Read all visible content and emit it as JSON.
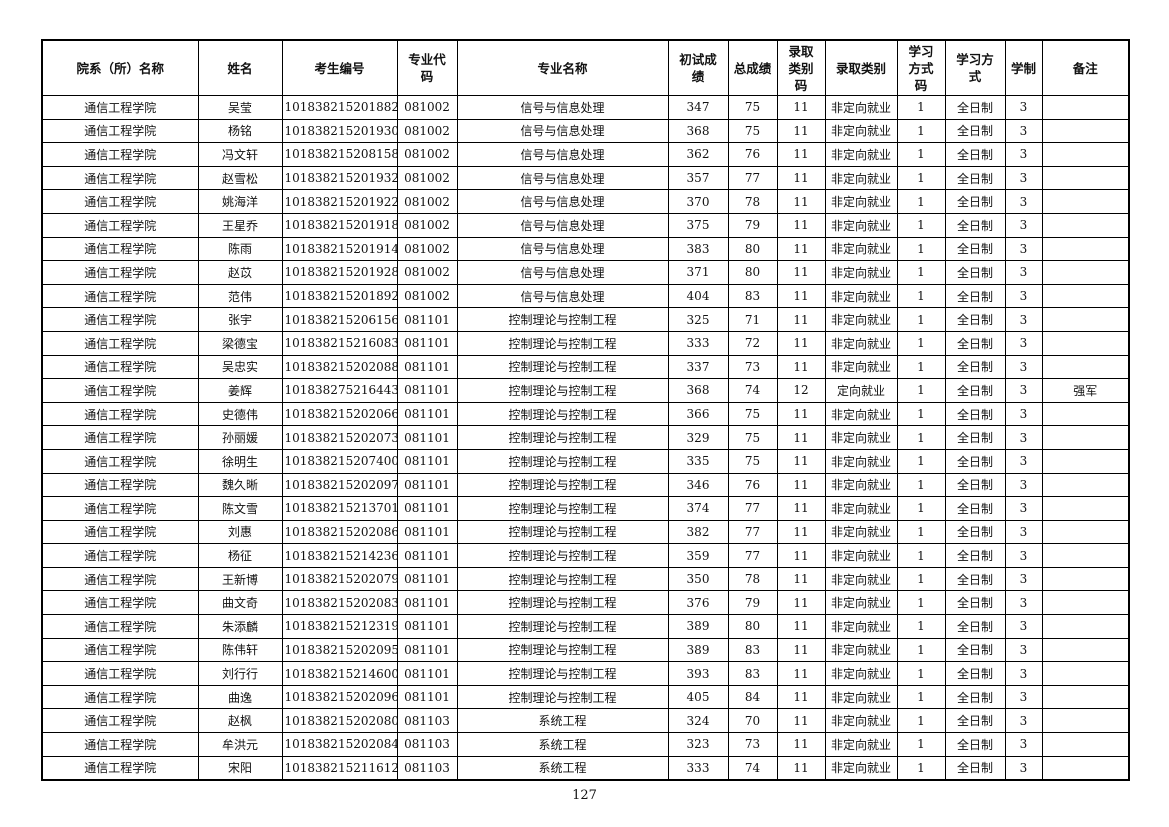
{
  "table": {
    "header": [
      "院系（所）名称",
      "姓名",
      "考生编号",
      "专业代码",
      "专业名称",
      "初试成绩",
      "总成绩",
      "录取类别码",
      "录取类别",
      "学习方式码",
      "学习方式",
      "学制",
      "备注"
    ],
    "rows": [
      [
        "通信工程学院",
        "吴莹",
        "101838215201882",
        "081002",
        "信号与信息处理",
        347,
        75,
        11,
        "非定向就业",
        1,
        "全日制",
        3
      ],
      [
        "通信工程学院",
        "杨铭",
        "101838215201930",
        "081002",
        "信号与信息处理",
        368,
        75,
        11,
        "非定向就业",
        1,
        "全日制",
        3
      ],
      [
        "通信工程学院",
        "冯文轩",
        "101838215208158",
        "081002",
        "信号与信息处理",
        362,
        76,
        11,
        "非定向就业",
        1,
        "全日制",
        3
      ],
      [
        "通信工程学院",
        "赵雪松",
        "101838215201932",
        "081002",
        "信号与信息处理",
        357,
        77,
        11,
        "非定向就业",
        1,
        "全日制",
        3
      ],
      [
        "通信工程学院",
        "姚海洋",
        "101838215201922",
        "081002",
        "信号与信息处理",
        370,
        78,
        11,
        "非定向就业",
        1,
        "全日制",
        3
      ],
      [
        "通信工程学院",
        "王星乔",
        "101838215201918",
        "081002",
        "信号与信息处理",
        375,
        79,
        11,
        "非定向就业",
        1,
        "全日制",
        3
      ],
      [
        "通信工程学院",
        "陈雨",
        "101838215201914",
        "081002",
        "信号与信息处理",
        383,
        80,
        11,
        "非定向就业",
        1,
        "全日制",
        3
      ],
      [
        "通信工程学院",
        "赵苡",
        "101838215201928",
        "081002",
        "信号与信息处理",
        371,
        80,
        11,
        "非定向就业",
        1,
        "全日制",
        3
      ],
      [
        "通信工程学院",
        "范伟",
        "101838215201892",
        "081002",
        "信号与信息处理",
        404,
        83,
        11,
        "非定向就业",
        1,
        "全日制",
        3
      ],
      [
        "通信工程学院",
        "张宇",
        "101838215206156",
        "081101",
        "控制理论与控制工程",
        325,
        71,
        11,
        "非定向就业",
        1,
        "全日制",
        3
      ],
      [
        "通信工程学院",
        "梁德宝",
        "101838215216083",
        "081101",
        "控制理论与控制工程",
        333,
        72,
        11,
        "非定向就业",
        1,
        "全日制",
        3
      ],
      [
        "通信工程学院",
        "吴忠实",
        "101838215202088",
        "081101",
        "控制理论与控制工程",
        337,
        73,
        11,
        "非定向就业",
        1,
        "全日制",
        3
      ],
      [
        "通信工程学院",
        "姜辉",
        "101838275216443",
        "081101",
        "控制理论与控制工程",
        368,
        74,
        12,
        "定向就业",
        1,
        "全日制",
        3,
        "强军"
      ],
      [
        "通信工程学院",
        "史德伟",
        "101838215202066",
        "081101",
        "控制理论与控制工程",
        366,
        75,
        11,
        "非定向就业",
        1,
        "全日制",
        3
      ],
      [
        "通信工程学院",
        "孙丽媛",
        "101838215202073",
        "081101",
        "控制理论与控制工程",
        329,
        75,
        11,
        "非定向就业",
        1,
        "全日制",
        3
      ],
      [
        "通信工程学院",
        "徐明生",
        "101838215207400",
        "081101",
        "控制理论与控制工程",
        335,
        75,
        11,
        "非定向就业",
        1,
        "全日制",
        3
      ],
      [
        "通信工程学院",
        "魏久晰",
        "101838215202097",
        "081101",
        "控制理论与控制工程",
        346,
        76,
        11,
        "非定向就业",
        1,
        "全日制",
        3
      ],
      [
        "通信工程学院",
        "陈文雪",
        "101838215213701",
        "081101",
        "控制理论与控制工程",
        374,
        77,
        11,
        "非定向就业",
        1,
        "全日制",
        3
      ],
      [
        "通信工程学院",
        "刘惠",
        "101838215202086",
        "081101",
        "控制理论与控制工程",
        382,
        77,
        11,
        "非定向就业",
        1,
        "全日制",
        3
      ],
      [
        "通信工程学院",
        "杨征",
        "101838215214236",
        "081101",
        "控制理论与控制工程",
        359,
        77,
        11,
        "非定向就业",
        1,
        "全日制",
        3
      ],
      [
        "通信工程学院",
        "王新博",
        "101838215202079",
        "081101",
        "控制理论与控制工程",
        350,
        78,
        11,
        "非定向就业",
        1,
        "全日制",
        3
      ],
      [
        "通信工程学院",
        "曲文奇",
        "101838215202083",
        "081101",
        "控制理论与控制工程",
        376,
        79,
        11,
        "非定向就业",
        1,
        "全日制",
        3
      ],
      [
        "通信工程学院",
        "朱添麟",
        "101838215212319",
        "081101",
        "控制理论与控制工程",
        389,
        80,
        11,
        "非定向就业",
        1,
        "全日制",
        3
      ],
      [
        "通信工程学院",
        "陈伟轩",
        "101838215202095",
        "081101",
        "控制理论与控制工程",
        389,
        83,
        11,
        "非定向就业",
        1,
        "全日制",
        3
      ],
      [
        "通信工程学院",
        "刘行行",
        "101838215214600",
        "081101",
        "控制理论与控制工程",
        393,
        83,
        11,
        "非定向就业",
        1,
        "全日制",
        3
      ],
      [
        "通信工程学院",
        "曲逸",
        "101838215202096",
        "081101",
        "控制理论与控制工程",
        405,
        84,
        11,
        "非定向就业",
        1,
        "全日制",
        3
      ],
      [
        "通信工程学院",
        "赵枫",
        "101838215202080",
        "081103",
        "系统工程",
        324,
        70,
        11,
        "非定向就业",
        1,
        "全日制",
        3
      ],
      [
        "通信工程学院",
        "牟洪元",
        "101838215202084",
        "081103",
        "系统工程",
        323,
        73,
        11,
        "非定向就业",
        1,
        "全日制",
        3
      ],
      [
        "通信工程学院",
        "宋阳",
        "101838215211612",
        "081103",
        "系统工程",
        333,
        74,
        11,
        "非定向就业",
        1,
        "全日制",
        3
      ]
    ]
  },
  "footer": {
    "page_number": "127"
  }
}
